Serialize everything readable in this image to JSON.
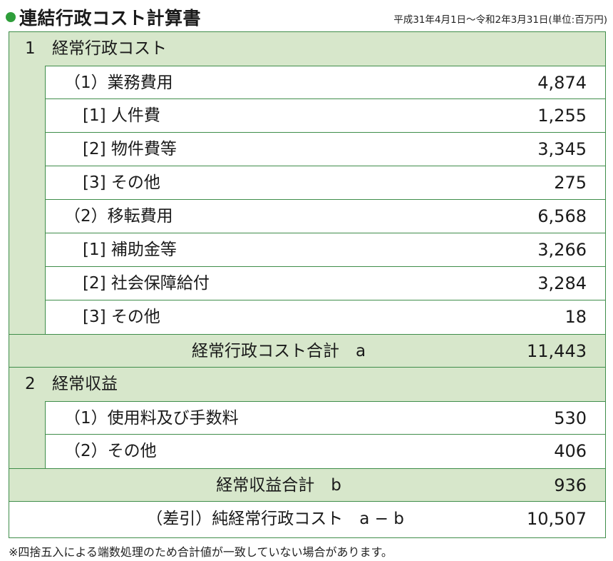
{
  "header": {
    "title": "連結行政コスト計算書",
    "period": "平成31年4月1日〜令和2年3月31日(単位:百万円)"
  },
  "section1": {
    "num": "1",
    "label": "経常行政コスト",
    "items": [
      {
        "label": "（1）業務費用",
        "value": "4,874"
      },
      {
        "label": "[1] 人件費",
        "value": "1,255"
      },
      {
        "label": "[2] 物件費等",
        "value": "3,345"
      },
      {
        "label": "[3] その他",
        "value": "275"
      },
      {
        "label": "（2）移転費用",
        "value": "6,568"
      },
      {
        "label": "[1] 補助金等",
        "value": "3,266"
      },
      {
        "label": "[2] 社会保障給付",
        "value": "3,284"
      },
      {
        "label": "[3] その他",
        "value": "18"
      }
    ],
    "total_label": "経常行政コスト合計　a",
    "total_value": "11,443"
  },
  "section2": {
    "num": "2",
    "label": "経常収益",
    "items": [
      {
        "label": "（1）使用料及び手数料",
        "value": "530"
      },
      {
        "label": "（2）その他",
        "value": "406"
      }
    ],
    "total_label": "経常収益合計　b",
    "total_value": "936"
  },
  "net": {
    "label": "（差引）純経常行政コスト　a − b",
    "value": "10,507"
  },
  "footnote": "※四捨五入による端数処理のため合計値が一致していない場合があります。",
  "colors": {
    "accent": "#2e9e3a",
    "row_fill": "#d7e7cb",
    "border": "#3f8d4a"
  }
}
